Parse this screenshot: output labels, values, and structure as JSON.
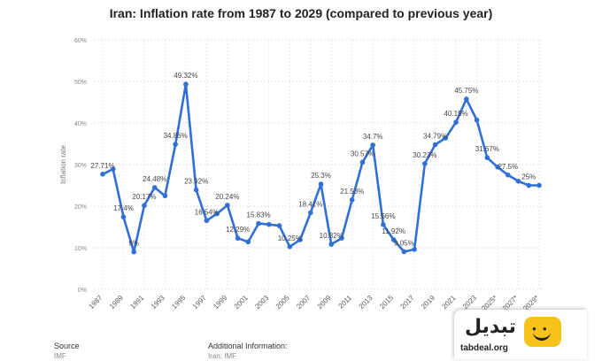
{
  "chart_data": {
    "type": "line",
    "title": "Iran: Inflation rate from 1987 to 2029 (compared to previous year)",
    "xlabel": "",
    "ylabel": "Inflation rate",
    "ylim": [
      0,
      60
    ],
    "yticks": [
      "0%",
      "10%",
      "20%",
      "30%",
      "40%",
      "50%",
      "60%"
    ],
    "grid": true,
    "line_color": "#2f6fd6",
    "x_ticks": [
      "1987",
      "1989",
      "1991",
      "1993",
      "1995",
      "1997",
      "1999",
      "2001",
      "2003",
      "2005",
      "2007",
      "2009",
      "2011",
      "2013",
      "2015",
      "2017",
      "2019",
      "2021",
      "2023",
      "2025*",
      "2027*",
      "2029*"
    ],
    "x": [
      1987,
      1988,
      1989,
      1990,
      1991,
      1992,
      1993,
      1994,
      1995,
      1996,
      1997,
      1998,
      1999,
      2000,
      2001,
      2002,
      2003,
      2004,
      2005,
      2006,
      2007,
      2008,
      2009,
      2010,
      2011,
      2012,
      2013,
      2014,
      2015,
      2016,
      2017,
      2018,
      2019,
      2020,
      2021,
      2022,
      2023,
      2024,
      2025,
      2026,
      2027,
      2028,
      2029
    ],
    "values": [
      27.71,
      28.9,
      17.4,
      9.0,
      20.17,
      24.48,
      22.5,
      34.86,
      49.32,
      23.92,
      16.54,
      18.2,
      20.24,
      12.29,
      11.4,
      15.83,
      15.6,
      15.3,
      10.25,
      11.9,
      18.41,
      25.3,
      10.82,
      12.3,
      21.53,
      30.57,
      34.7,
      15.56,
      11.92,
      9.05,
      9.6,
      30.23,
      34.79,
      36.4,
      40.19,
      45.75,
      40.7,
      31.67,
      29.4,
      27.5,
      26.0,
      25.0,
      25.0
    ],
    "data_labels": [
      {
        "x": 1987,
        "text": "27.71%"
      },
      {
        "x": 1989,
        "text": "17.4%"
      },
      {
        "x": 1990,
        "text": "9%"
      },
      {
        "x": 1991,
        "text": "20.17%"
      },
      {
        "x": 1992,
        "text": "24.48%"
      },
      {
        "x": 1994,
        "text": "34.86%"
      },
      {
        "x": 1995,
        "text": "49.32%"
      },
      {
        "x": 1996,
        "text": "23.92%"
      },
      {
        "x": 1997,
        "text": "16.54%"
      },
      {
        "x": 1999,
        "text": "20.24%"
      },
      {
        "x": 2000,
        "text": "12.29%"
      },
      {
        "x": 2002,
        "text": "15.83%"
      },
      {
        "x": 2005,
        "text": "10.25%"
      },
      {
        "x": 2007,
        "text": "18.41%"
      },
      {
        "x": 2008,
        "text": "25.3%"
      },
      {
        "x": 2009,
        "text": "10.82%"
      },
      {
        "x": 2011,
        "text": "21.53%"
      },
      {
        "x": 2012,
        "text": "30.57%"
      },
      {
        "x": 2013,
        "text": "34.7%"
      },
      {
        "x": 2014,
        "text": "15.56%"
      },
      {
        "x": 2015,
        "text": "11.92%"
      },
      {
        "x": 2016,
        "text": "9.05%"
      },
      {
        "x": 2018,
        "text": "30.23%"
      },
      {
        "x": 2019,
        "text": "34.79%"
      },
      {
        "x": 2021,
        "text": "40.19%"
      },
      {
        "x": 2022,
        "text": "45.75%"
      },
      {
        "x": 2024,
        "text": "31.67%"
      },
      {
        "x": 2026,
        "text": "27.5%"
      },
      {
        "x": 2028,
        "text": "25%"
      }
    ]
  },
  "footer": {
    "source_label": "Source",
    "source_value": "IMF",
    "additional_label": "Additional Information:",
    "additional_value": "Iran; IMF"
  },
  "watermark": {
    "text": "تبدیل",
    "url": "tabdeal.org"
  }
}
